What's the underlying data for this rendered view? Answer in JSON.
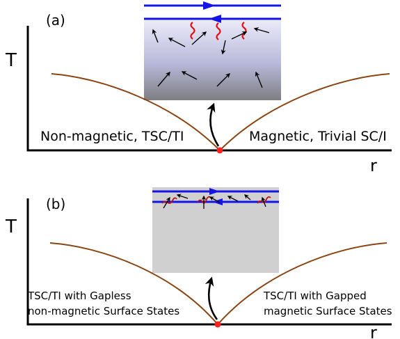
{
  "panel_a": {
    "tag": "(a)",
    "y_axis_label": "T",
    "x_axis_label": "r",
    "left_phase": "Non-magnetic, TSC/TI",
    "right_phase": "Magnetic, Trivial SC/I"
  },
  "panel_b": {
    "tag": "(b)",
    "y_axis_label": "T",
    "x_axis_label": "r",
    "left_phase_line1": "TSC/TI with Gapless",
    "left_phase_line2": "non-magnetic Surface States",
    "right_phase_line1": "TSC/TI with Gapped",
    "right_phase_line2": "magnetic Surface States"
  },
  "colors": {
    "phase_boundary": "#8b4513",
    "critical_point": "#ff2020",
    "edge_channel": "#1414e6",
    "spin_fluctuation": "#e01010",
    "inset_a_top": "#ecebf9",
    "inset_a_bottom": "#7e7e82",
    "inset_b_fill": "#d0d0d0"
  }
}
